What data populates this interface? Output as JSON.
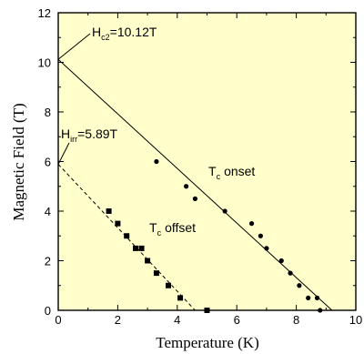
{
  "chart_data": {
    "type": "scatter",
    "title": "",
    "xlabel": "Temperature (K)",
    "ylabel": "Magnetic Field (T)",
    "xlim": [
      0,
      10
    ],
    "ylim": [
      0,
      12
    ],
    "xticks": [
      "0",
      "2",
      "4",
      "6",
      "8",
      "10"
    ],
    "yticks": [
      "0",
      "2",
      "4",
      "6",
      "8",
      "10",
      "12"
    ],
    "grid": false,
    "background": "#ffffcc",
    "series": [
      {
        "name": "T_c onset",
        "marker": "circle",
        "points": [
          [
            3.3,
            6.0
          ],
          [
            4.3,
            5.0
          ],
          [
            4.6,
            4.5
          ],
          [
            5.6,
            4.0
          ],
          [
            6.5,
            3.5
          ],
          [
            6.8,
            3.0
          ],
          [
            7.0,
            2.5
          ],
          [
            7.5,
            2.0
          ],
          [
            7.8,
            1.5
          ],
          [
            8.1,
            1.0
          ],
          [
            8.4,
            0.5
          ],
          [
            8.7,
            0.5
          ],
          [
            8.8,
            0.0
          ]
        ],
        "fit": {
          "style": "solid",
          "x": [
            0,
            9.2
          ],
          "y": [
            10.12,
            0
          ]
        }
      },
      {
        "name": "T_c offset",
        "marker": "square",
        "points": [
          [
            1.7,
            4.0
          ],
          [
            2.0,
            3.5
          ],
          [
            2.3,
            3.0
          ],
          [
            2.6,
            2.5
          ],
          [
            2.8,
            2.5
          ],
          [
            3.0,
            2.0
          ],
          [
            3.3,
            1.5
          ],
          [
            3.7,
            1.0
          ],
          [
            4.1,
            0.5
          ],
          [
            5.0,
            0.0
          ]
        ],
        "fit": {
          "style": "dashed",
          "x": [
            0,
            4.6
          ],
          "y": [
            5.89,
            0
          ]
        }
      }
    ],
    "annotations": {
      "hc2": {
        "main": "H",
        "sub": "c2",
        "value": "=10.12T"
      },
      "hirr": {
        "main": "H",
        "sub": "irr",
        "value": "=5.89T"
      },
      "onset": {
        "main": "T",
        "sub": "c",
        "value": "onset"
      },
      "offset": {
        "main": "T",
        "sub": "c",
        "value": "offset"
      }
    }
  }
}
